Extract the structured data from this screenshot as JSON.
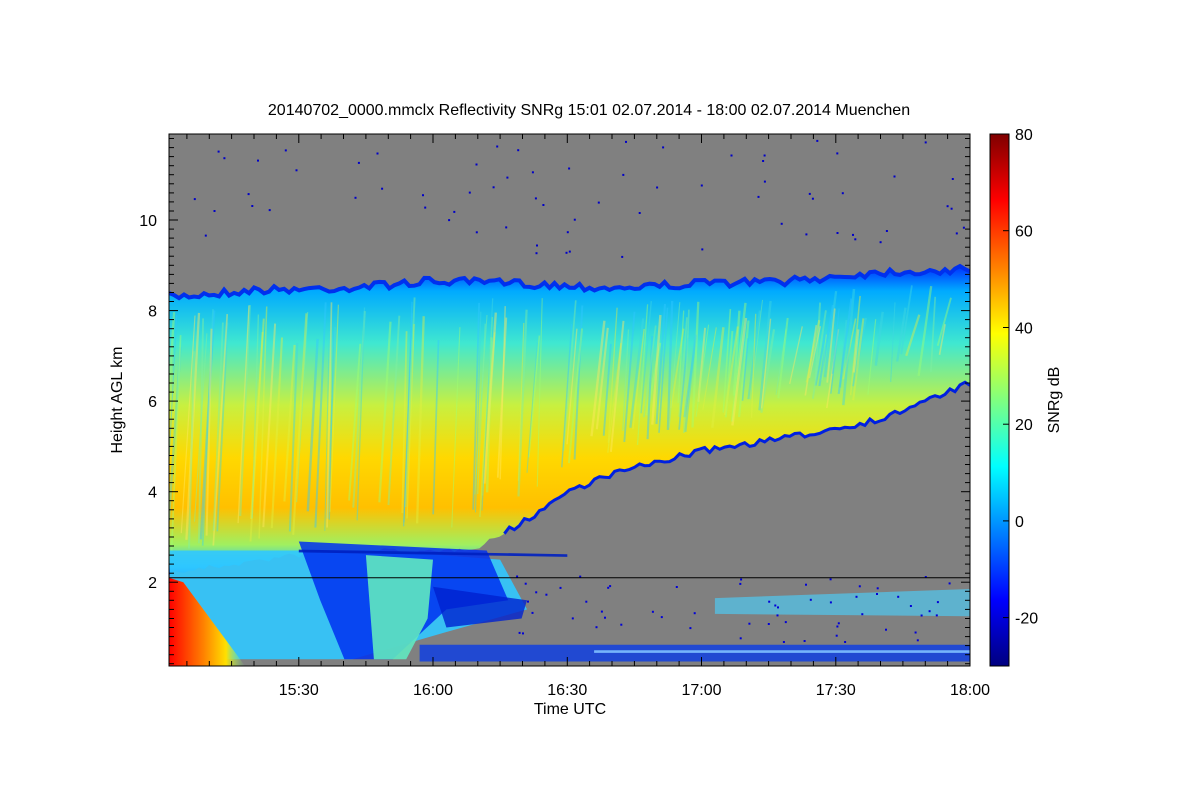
{
  "chart_data": {
    "type": "heatmap",
    "title": "20140702_0000.mmclx Reflectivity SNRg   15:01 02.07.2014 - 18:00 02.07.2014 Muenchen",
    "xlabel": "Time UTC",
    "ylabel": "Height AGL km",
    "colorbar_label": "SNRg dB",
    "xlim_hours": [
      15.0167,
      18.0
    ],
    "ylim_km": [
      0.15,
      11.9
    ],
    "x_ticks": [
      {
        "value": 15.5,
        "label": "15:30"
      },
      {
        "value": 16.0,
        "label": "16:00"
      },
      {
        "value": 16.5,
        "label": "16:30"
      },
      {
        "value": 17.0,
        "label": "17:00"
      },
      {
        "value": 17.5,
        "label": "17:30"
      },
      {
        "value": 18.0,
        "label": "18:00"
      }
    ],
    "y_ticks": [
      {
        "value": 2,
        "label": "2"
      },
      {
        "value": 4,
        "label": "4"
      },
      {
        "value": 6,
        "label": "6"
      },
      {
        "value": 8,
        "label": "8"
      },
      {
        "value": 10,
        "label": "10"
      }
    ],
    "colorbar_range": [
      -30,
      80
    ],
    "colorbar_ticks": [
      {
        "value": -20,
        "label": "-20"
      },
      {
        "value": 0,
        "label": "0"
      },
      {
        "value": 20,
        "label": "20"
      },
      {
        "value": 40,
        "label": "40"
      },
      {
        "value": 60,
        "label": "60"
      },
      {
        "value": 80,
        "label": "80"
      }
    ],
    "colormap": "jet",
    "nodata_color": "#808080",
    "reference_line_km": 2.1,
    "cloud_top_km": {
      "times": [
        15.02,
        15.33,
        15.67,
        16.0,
        16.33,
        16.67,
        17.0,
        17.33,
        17.67,
        18.0
      ],
      "values": [
        8.3,
        8.45,
        8.5,
        8.65,
        8.6,
        8.5,
        8.6,
        8.65,
        8.85,
        8.9
      ]
    },
    "cloud_base_km": {
      "times": [
        15.02,
        15.5,
        15.83,
        16.0,
        16.17,
        16.33,
        16.5,
        16.67,
        17.0,
        17.33,
        17.67,
        18.0
      ],
      "values": [
        2.2,
        2.6,
        2.7,
        2.65,
        2.8,
        3.3,
        4.0,
        4.4,
        4.9,
        5.2,
        5.6,
        6.4
      ]
    },
    "max_snr_height_km": {
      "times": [
        15.02,
        15.5,
        16.0,
        16.5,
        17.0,
        17.5,
        18.0
      ],
      "values": [
        4.2,
        4.25,
        4.6,
        5.2,
        5.9,
        6.6,
        7.3
      ]
    },
    "peak_snr_db": {
      "times": [
        15.02,
        15.5,
        16.0,
        16.5,
        17.0,
        17.5,
        18.0
      ],
      "values": [
        44,
        40,
        38,
        36,
        35,
        33,
        32
      ]
    }
  }
}
